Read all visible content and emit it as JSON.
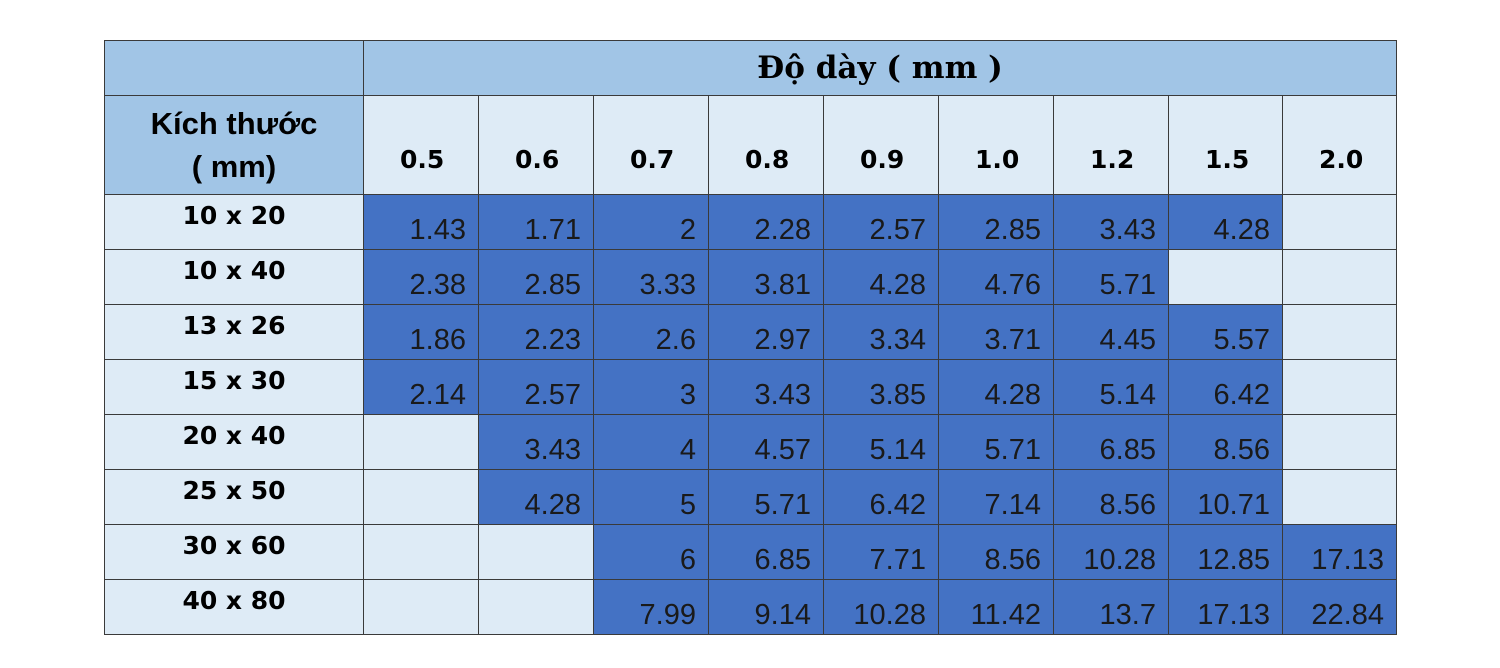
{
  "table": {
    "thickness_header": "Độ dày ( mm )",
    "size_header_line1": "Kích thước",
    "size_header_line2": "( mm)",
    "thickness_columns": [
      "0.5",
      "0.6",
      "0.7",
      "0.8",
      "0.9",
      "1.0",
      "1.2",
      "1.5",
      "2.0"
    ],
    "rows": [
      {
        "size": "10 x 20",
        "values": [
          "1.43",
          "1.71",
          "2",
          "2.28",
          "2.57",
          "2.85",
          "3.43",
          "4.28",
          ""
        ]
      },
      {
        "size": "10 x 40",
        "values": [
          "2.38",
          "2.85",
          "3.33",
          "3.81",
          "4.28",
          "4.76",
          "5.71",
          "",
          ""
        ]
      },
      {
        "size": "13 x 26",
        "values": [
          "1.86",
          "2.23",
          "2.6",
          "2.97",
          "3.34",
          "3.71",
          "4.45",
          "5.57",
          ""
        ]
      },
      {
        "size": "15 x 30",
        "values": [
          "2.14",
          "2.57",
          "3",
          "3.43",
          "3.85",
          "4.28",
          "5.14",
          "6.42",
          ""
        ]
      },
      {
        "size": "20 x 40",
        "values": [
          "",
          "3.43",
          "4",
          "4.57",
          "5.14",
          "5.71",
          "6.85",
          "8.56",
          ""
        ]
      },
      {
        "size": "25 x 50",
        "values": [
          "",
          "4.28",
          "5",
          "5.71",
          "6.42",
          "7.14",
          "8.56",
          "10.71",
          ""
        ]
      },
      {
        "size": "30 x 60",
        "values": [
          "",
          "",
          "6",
          "6.85",
          "7.71",
          "8.56",
          "10.28",
          "12.85",
          "17.13"
        ]
      },
      {
        "size": "40 x 80",
        "values": [
          "",
          "",
          "7.99",
          "9.14",
          "10.28",
          "11.42",
          "13.7",
          "17.13",
          "22.84"
        ]
      }
    ]
  },
  "colors": {
    "header_bg": "#a1c5e6",
    "light_cell_bg": "#deebf6",
    "filled_cell_bg": "#4472c4",
    "border": "#3a3a3a"
  }
}
